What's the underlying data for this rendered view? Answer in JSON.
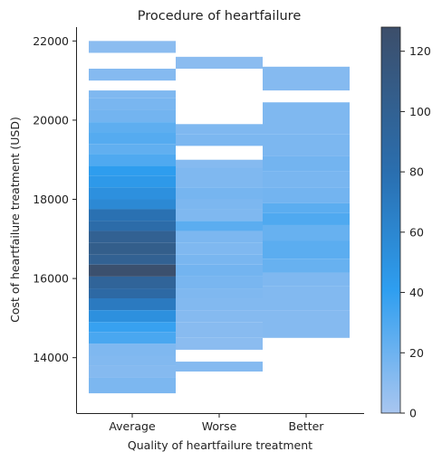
{
  "chart_data": {
    "type": "heatmap",
    "title": "Procedure of heartfailure",
    "xlabel": "Quality of heartfailure treatment",
    "ylabel": "Cost of heartfailure treatment (USD)",
    "categories": [
      "Average",
      "Worse",
      "Better"
    ],
    "y_ticks": [
      14000,
      16000,
      18000,
      20000,
      22000
    ],
    "y_tick_labels": [
      "14000",
      "16000",
      "18000",
      "20000",
      "22000"
    ],
    "ylim": [
      12600,
      22350
    ],
    "colorbar": {
      "ticks": [
        0,
        20,
        40,
        60,
        80,
        100,
        120
      ],
      "tick_labels": [
        "0",
        "20",
        "40",
        "60",
        "80",
        "100",
        "120"
      ],
      "range": [
        0,
        128
      ],
      "colors": [
        "#a9c6f0",
        "#2e9ef0",
        "#3c4e6a"
      ]
    },
    "cells": {
      "Average": [
        {
          "y0": 21700,
          "y1": 22000,
          "count": 10
        },
        {
          "y0": 21000,
          "y1": 21300,
          "count": 12
        },
        {
          "y0": 20550,
          "y1": 20750,
          "count": 14
        },
        {
          "y0": 20250,
          "y1": 20550,
          "count": 16
        },
        {
          "y0": 19950,
          "y1": 20250,
          "count": 18
        },
        {
          "y0": 19700,
          "y1": 19950,
          "count": 25
        },
        {
          "y0": 19400,
          "y1": 19700,
          "count": 28
        },
        {
          "y0": 19150,
          "y1": 19400,
          "count": 24
        },
        {
          "y0": 18850,
          "y1": 19150,
          "count": 30
        },
        {
          "y0": 18600,
          "y1": 18850,
          "count": 42
        },
        {
          "y0": 18300,
          "y1": 18600,
          "count": 45
        },
        {
          "y0": 18000,
          "y1": 18300,
          "count": 52
        },
        {
          "y0": 17750,
          "y1": 18000,
          "count": 58
        },
        {
          "y0": 17450,
          "y1": 17750,
          "count": 78
        },
        {
          "y0": 17200,
          "y1": 17450,
          "count": 84
        },
        {
          "y0": 16900,
          "y1": 17200,
          "count": 100
        },
        {
          "y0": 16600,
          "y1": 16900,
          "count": 105
        },
        {
          "y0": 16350,
          "y1": 16600,
          "count": 100
        },
        {
          "y0": 16050,
          "y1": 16350,
          "count": 125
        },
        {
          "y0": 15750,
          "y1": 16050,
          "count": 95
        },
        {
          "y0": 15500,
          "y1": 15750,
          "count": 88
        },
        {
          "y0": 15200,
          "y1": 15500,
          "count": 70
        },
        {
          "y0": 14900,
          "y1": 15200,
          "count": 52
        },
        {
          "y0": 14650,
          "y1": 14900,
          "count": 38
        },
        {
          "y0": 14350,
          "y1": 14650,
          "count": 32
        },
        {
          "y0": 14050,
          "y1": 14350,
          "count": 14
        },
        {
          "y0": 13800,
          "y1": 14050,
          "count": 13
        },
        {
          "y0": 13500,
          "y1": 13800,
          "count": 12
        },
        {
          "y0": 13100,
          "y1": 13500,
          "count": 15
        }
      ],
      "Worse": [
        {
          "y0": 21300,
          "y1": 21600,
          "count": 10
        },
        {
          "y0": 19650,
          "y1": 19900,
          "count": 14
        },
        {
          "y0": 19350,
          "y1": 19650,
          "count": 15
        },
        {
          "y0": 18800,
          "y1": 19000,
          "count": 12
        },
        {
          "y0": 18300,
          "y1": 18800,
          "count": 14
        },
        {
          "y0": 18000,
          "y1": 18300,
          "count": 17
        },
        {
          "y0": 17750,
          "y1": 18000,
          "count": 15
        },
        {
          "y0": 17450,
          "y1": 17750,
          "count": 14
        },
        {
          "y0": 17200,
          "y1": 17450,
          "count": 26
        },
        {
          "y0": 16900,
          "y1": 17200,
          "count": 15
        },
        {
          "y0": 16600,
          "y1": 16900,
          "count": 14
        },
        {
          "y0": 16350,
          "y1": 16600,
          "count": 16
        },
        {
          "y0": 16050,
          "y1": 16350,
          "count": 18
        },
        {
          "y0": 15750,
          "y1": 16050,
          "count": 16
        },
        {
          "y0": 15500,
          "y1": 15750,
          "count": 14
        },
        {
          "y0": 15200,
          "y1": 15500,
          "count": 13
        },
        {
          "y0": 14900,
          "y1": 15200,
          "count": 12
        },
        {
          "y0": 14500,
          "y1": 14900,
          "count": 11
        },
        {
          "y0": 14200,
          "y1": 14500,
          "count": 10
        },
        {
          "y0": 13650,
          "y1": 13900,
          "count": 12
        }
      ],
      "Better": [
        {
          "y0": 20750,
          "y1": 21350,
          "count": 12
        },
        {
          "y0": 19650,
          "y1": 20450,
          "count": 14
        },
        {
          "y0": 19100,
          "y1": 19650,
          "count": 15
        },
        {
          "y0": 18700,
          "y1": 19100,
          "count": 18
        },
        {
          "y0": 18300,
          "y1": 18700,
          "count": 16
        },
        {
          "y0": 17900,
          "y1": 18300,
          "count": 18
        },
        {
          "y0": 17650,
          "y1": 17900,
          "count": 26
        },
        {
          "y0": 17350,
          "y1": 17650,
          "count": 30
        },
        {
          "y0": 16950,
          "y1": 17350,
          "count": 22
        },
        {
          "y0": 16500,
          "y1": 16950,
          "count": 26
        },
        {
          "y0": 16150,
          "y1": 16500,
          "count": 22
        },
        {
          "y0": 15800,
          "y1": 16150,
          "count": 14
        },
        {
          "y0": 15200,
          "y1": 15800,
          "count": 13
        },
        {
          "y0": 14500,
          "y1": 15200,
          "count": 12
        }
      ]
    }
  }
}
